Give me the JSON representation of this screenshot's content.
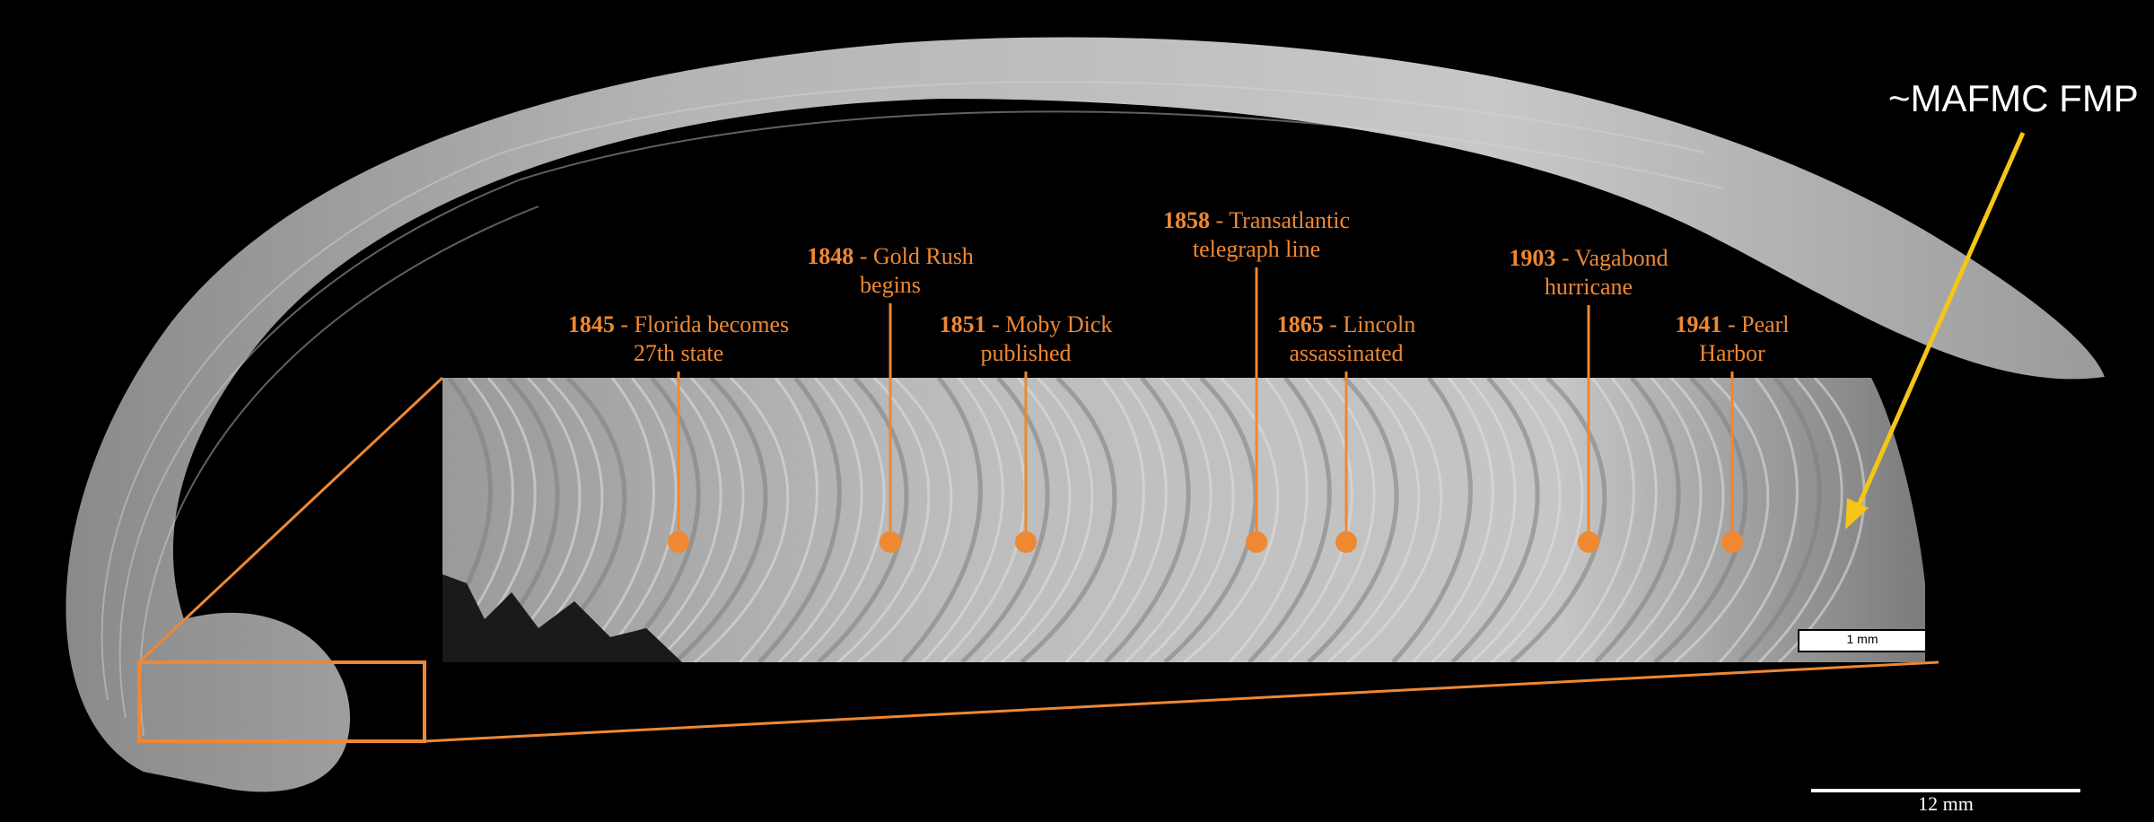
{
  "annotation_color": "#ee8833",
  "arrow_color": "#f5c518",
  "fmp_label": "~MAFMC FMP",
  "scale_bar_main": "12 mm",
  "scale_bar_inset": "1 mm",
  "events": [
    {
      "year": "1845",
      "line1": " - Florida becomes",
      "line2": "27th state"
    },
    {
      "year": "1848",
      "line1": " - Gold Rush",
      "line2": "begins"
    },
    {
      "year": "1851",
      "line1": " - Moby Dick",
      "line2": "published"
    },
    {
      "year": "1858",
      "line1": " - Transatlantic",
      "line2": "telegraph line"
    },
    {
      "year": "1865",
      "line1": " - Lincoln",
      "line2": "assassinated"
    },
    {
      "year": "1903",
      "line1": " - Vagabond",
      "line2": "hurricane"
    },
    {
      "year": "1941",
      "line1": " - Pearl",
      "line2": "Harbor"
    }
  ]
}
